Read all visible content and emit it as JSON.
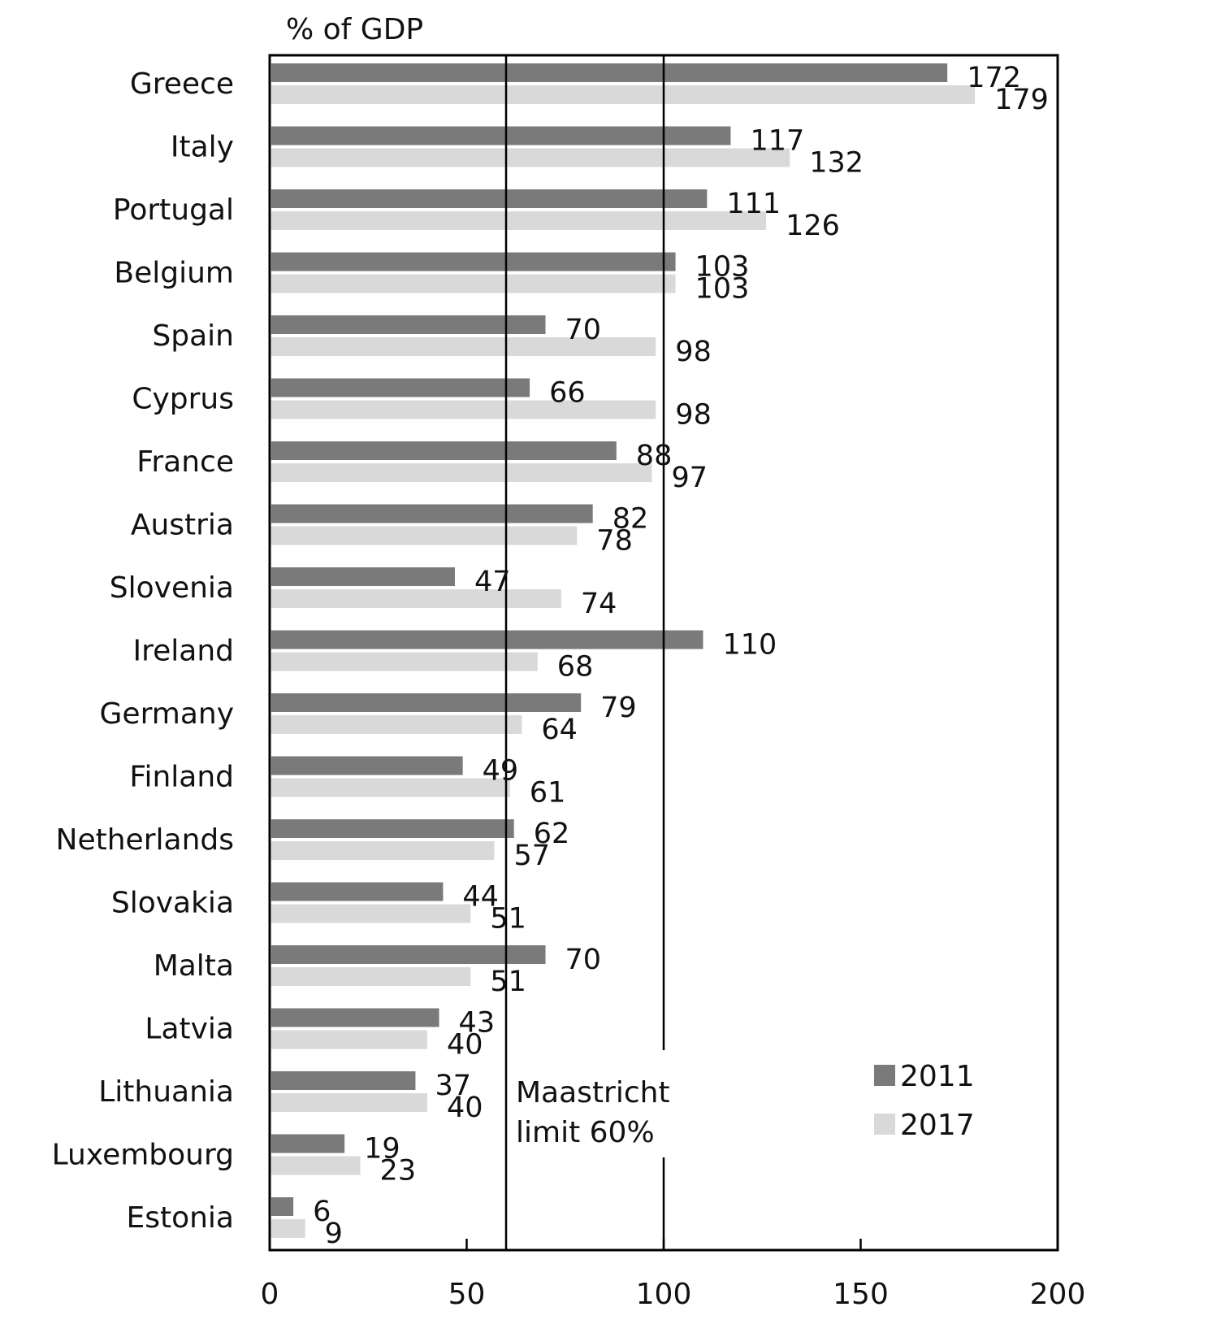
{
  "chart_data": {
    "type": "bar",
    "orientation": "horizontal",
    "title": "",
    "unit_label": "% of GDP",
    "xlabel": "",
    "ylabel": "",
    "xlim": [
      0,
      200
    ],
    "x_ticks": [
      "0",
      "50",
      "100",
      "150",
      "200"
    ],
    "grid": false,
    "legend_position": "bottom-right",
    "categories": [
      "Greece",
      "Italy",
      "Portugal",
      "Belgium",
      "Spain",
      "Cyprus",
      "France",
      "Austria",
      "Slovenia",
      "Ireland",
      "Germany",
      "Finland",
      "Netherlands",
      "Slovakia",
      "Malta",
      "Latvia",
      "Lithuania",
      "Luxembourg",
      "Estonia"
    ],
    "series": [
      {
        "name": "2011",
        "color": "#7a7a7a",
        "values": [
          172,
          117,
          111,
          103,
          70,
          66,
          88,
          82,
          47,
          110,
          79,
          49,
          62,
          44,
          70,
          43,
          37,
          19,
          6
        ]
      },
      {
        "name": "2017",
        "color": "#d9d9d9",
        "values": [
          179,
          132,
          126,
          103,
          98,
          98,
          97,
          78,
          74,
          68,
          64,
          61,
          57,
          51,
          51,
          40,
          40,
          23,
          9
        ]
      }
    ],
    "reference_lines": [
      {
        "value": 60,
        "label_lines": [
          "Maastricht",
          "limit 60%"
        ]
      },
      {
        "value": 100
      }
    ]
  }
}
